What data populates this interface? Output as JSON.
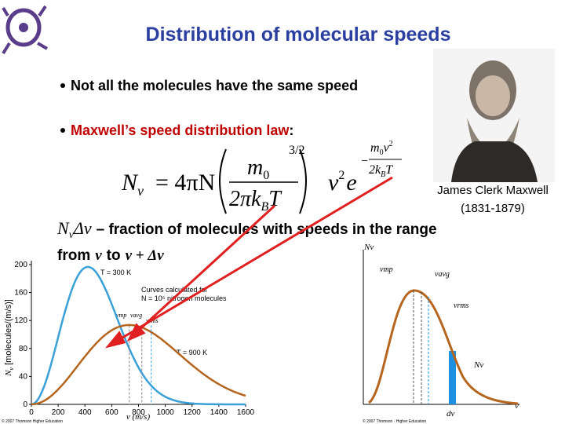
{
  "title": "Distribution of molecular speeds",
  "bullets": [
    {
      "text": "Not all the molecules have the same speed"
    },
    {
      "highlight": "Maxwell’s speed distribution law",
      "text": ":"
    }
  ],
  "equation": {
    "lhs": "N",
    "lhs_sub": "v",
    "coef": "= 4πN",
    "num": "m",
    "num_sub": "0",
    "den": "2πk",
    "den_sub": "B",
    "den_end": "T",
    "power": "3/2",
    "v": "v",
    "v_pow": "2",
    "e": "e",
    "exp_minus": "−",
    "exp_num": "m",
    "exp_num_sub": "0",
    "exp_num_end": "v",
    "exp_num_pow": "2",
    "exp_den": "2k",
    "exp_den_sub": "B",
    "exp_den_end": "T"
  },
  "portrait": {
    "name": "James Clerk Maxwell",
    "years": "(1831-1879)"
  },
  "definition": {
    "symbol": "N",
    "symbol_sub": "v",
    "delta": "Δv",
    "text": "– fraction of molecules with speeds in the range",
    "from": "from",
    "v1": "v",
    "to": "to",
    "v2": "v + Δv"
  },
  "left_graph": {
    "y_label_main": "N",
    "y_label_sub": "v",
    "y_label_unit": "[molecules/(m/s)]",
    "x_label": "v (m/s)",
    "xlim": [
      0,
      1600
    ],
    "ylim": [
      0,
      200
    ],
    "xticks": [
      0,
      200,
      400,
      600,
      800,
      1000,
      1200,
      1400,
      1600
    ],
    "yticks": [
      0,
      40,
      80,
      120,
      160,
      200
    ],
    "label_cold": "T = 300 K",
    "label_hot": "T = 900 K",
    "note_line1": "Curves calculated for",
    "note_line2": "N = 10⁵ nitrogen molecules",
    "vmp": "vmp",
    "vavg": "vavg",
    "vrms": "vrms",
    "copyright": "© 2007 Thomson Higher Education"
  },
  "right_graph": {
    "y_label": "Nv",
    "vmp": "vmp",
    "vavg": "vavg",
    "vrms": "vrms",
    "bar_label": "Nv",
    "dv": "dv",
    "x_label": "v",
    "copyright": "© 2007 Thomson · Higher Education"
  }
}
